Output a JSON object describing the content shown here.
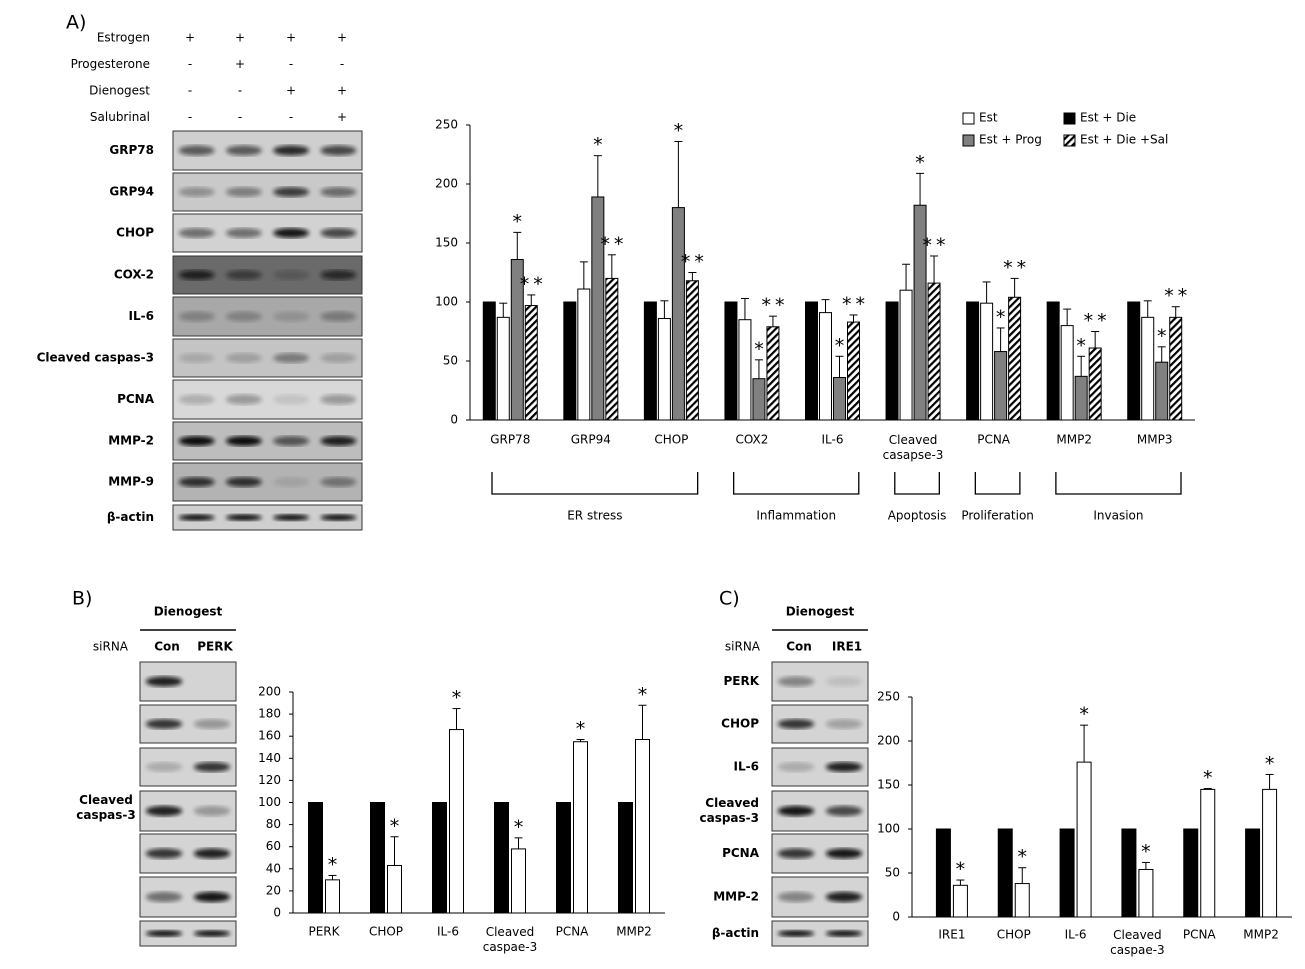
{
  "panels": {
    "a": "A)",
    "b": "B)",
    "c": "C)"
  },
  "blots": [
    {
      "treatments": [
        {
          "name": "Estrogen",
          "signs": [
            "+",
            "+",
            "+",
            "+"
          ]
        },
        {
          "name": "Progesterone",
          "signs": [
            "-",
            "+",
            "-",
            "-"
          ]
        },
        {
          "name": "Dienogest",
          "signs": [
            "-",
            "-",
            "+",
            "+"
          ]
        },
        {
          "name": "Salubrinal",
          "signs": [
            "-",
            "-",
            "-",
            "+"
          ]
        }
      ],
      "rows": [
        "GRP78",
        "GRP94",
        "CHOP",
        "COX-2",
        "IL-6",
        "Cleaved caspas-3",
        "PCNA",
        "MMP-2",
        "MMP-9",
        "β-actin"
      ]
    },
    {
      "header": "Dienogest",
      "lane_title": "siRNA",
      "lanes": [
        "Con",
        "PERK"
      ],
      "rows": [
        "Cleaved caspas-3"
      ]
    },
    {
      "header": "Dienogest",
      "lane_title": "siRNA",
      "lanes": [
        "Con",
        "IRE1"
      ],
      "rows": [
        "PERK",
        "CHOP",
        "IL-6",
        "Cleaved caspas-3",
        "PCNA",
        "MMP-2",
        "β-actin"
      ]
    }
  ],
  "chart_data": [
    {
      "type": "bar",
      "categories": [
        "GRP78",
        "GRP94",
        "CHOP",
        "COX2",
        "IL-6",
        "Cleaved casapse-3",
        "PCNA",
        "MMP2",
        "MMP3"
      ],
      "series": [
        {
          "name": "Est + Die",
          "color": "#000000",
          "values": [
            100,
            100,
            100,
            100,
            100,
            100,
            100,
            100,
            100
          ]
        },
        {
          "name": "Est",
          "color": "#ffffff",
          "values": [
            87,
            111,
            86,
            85,
            91,
            110,
            99,
            80,
            87
          ],
          "errors": [
            12,
            23,
            15,
            18,
            11,
            22,
            18,
            14,
            14
          ]
        },
        {
          "name": "Est + Prog",
          "color": "#808080",
          "values": [
            136,
            189,
            180,
            35,
            36,
            182,
            58,
            37,
            49
          ],
          "errors": [
            23,
            35,
            56,
            16,
            18,
            27,
            20,
            17,
            13
          ],
          "annotations": [
            "*",
            "*",
            "*",
            "*",
            "*",
            "*",
            "*",
            "*",
            "*"
          ]
        },
        {
          "name": "Est + Die +Sal",
          "color": "hatch",
          "values": [
            97,
            120,
            118,
            79,
            83,
            116,
            104,
            61,
            87
          ],
          "errors": [
            9,
            20,
            7,
            9,
            6,
            23,
            16,
            14,
            9
          ],
          "annotations": [
            "**",
            "**",
            "**",
            "**",
            "**",
            "**",
            "**",
            "**",
            "**"
          ]
        }
      ],
      "ylim": [
        0,
        250
      ],
      "yticks": [
        0,
        50,
        100,
        150,
        200,
        250
      ],
      "groups": [
        {
          "label": "ER stress",
          "from": 0,
          "to": 2
        },
        {
          "label": "Inflammation",
          "from": 3,
          "to": 4
        },
        {
          "label": "Apoptosis",
          "from": 5,
          "to": 5
        },
        {
          "label": "Proliferation",
          "from": 6,
          "to": 6
        },
        {
          "label": "Invasion",
          "from": 7,
          "to": 8
        }
      ]
    },
    {
      "type": "bar",
      "categories": [
        "PERK",
        "CHOP",
        "IL-6",
        "Cleaved caspae-3",
        "PCNA",
        "MMP2"
      ],
      "series": [
        {
          "color": "#000000",
          "values": [
            100,
            100,
            100,
            100,
            100,
            100
          ]
        },
        {
          "color": "#ffffff",
          "values": [
            30,
            43,
            166,
            58,
            155,
            157
          ],
          "errors": [
            4,
            26,
            19,
            10,
            2,
            31
          ],
          "annotations": [
            "*",
            "*",
            "*",
            "*",
            "*",
            "*"
          ]
        }
      ],
      "ylim": [
        0,
        200
      ],
      "yticks": [
        0,
        20,
        40,
        60,
        80,
        100,
        120,
        140,
        160,
        180,
        200
      ]
    },
    {
      "type": "bar",
      "categories": [
        "IRE1",
        "CHOP",
        "IL-6",
        "Cleaved caspae-3",
        "PCNA",
        "MMP2"
      ],
      "series": [
        {
          "color": "#000000",
          "values": [
            100,
            100,
            100,
            100,
            100,
            100
          ]
        },
        {
          "color": "#ffffff",
          "values": [
            36,
            38,
            176,
            54,
            145,
            145
          ],
          "errors": [
            6,
            18,
            42,
            8,
            1,
            17
          ],
          "annotations": [
            "*",
            "*",
            "*",
            "*",
            "*",
            "*"
          ]
        }
      ],
      "ylim": [
        0,
        250
      ],
      "yticks": [
        0,
        50,
        100,
        150,
        200,
        250
      ]
    }
  ]
}
